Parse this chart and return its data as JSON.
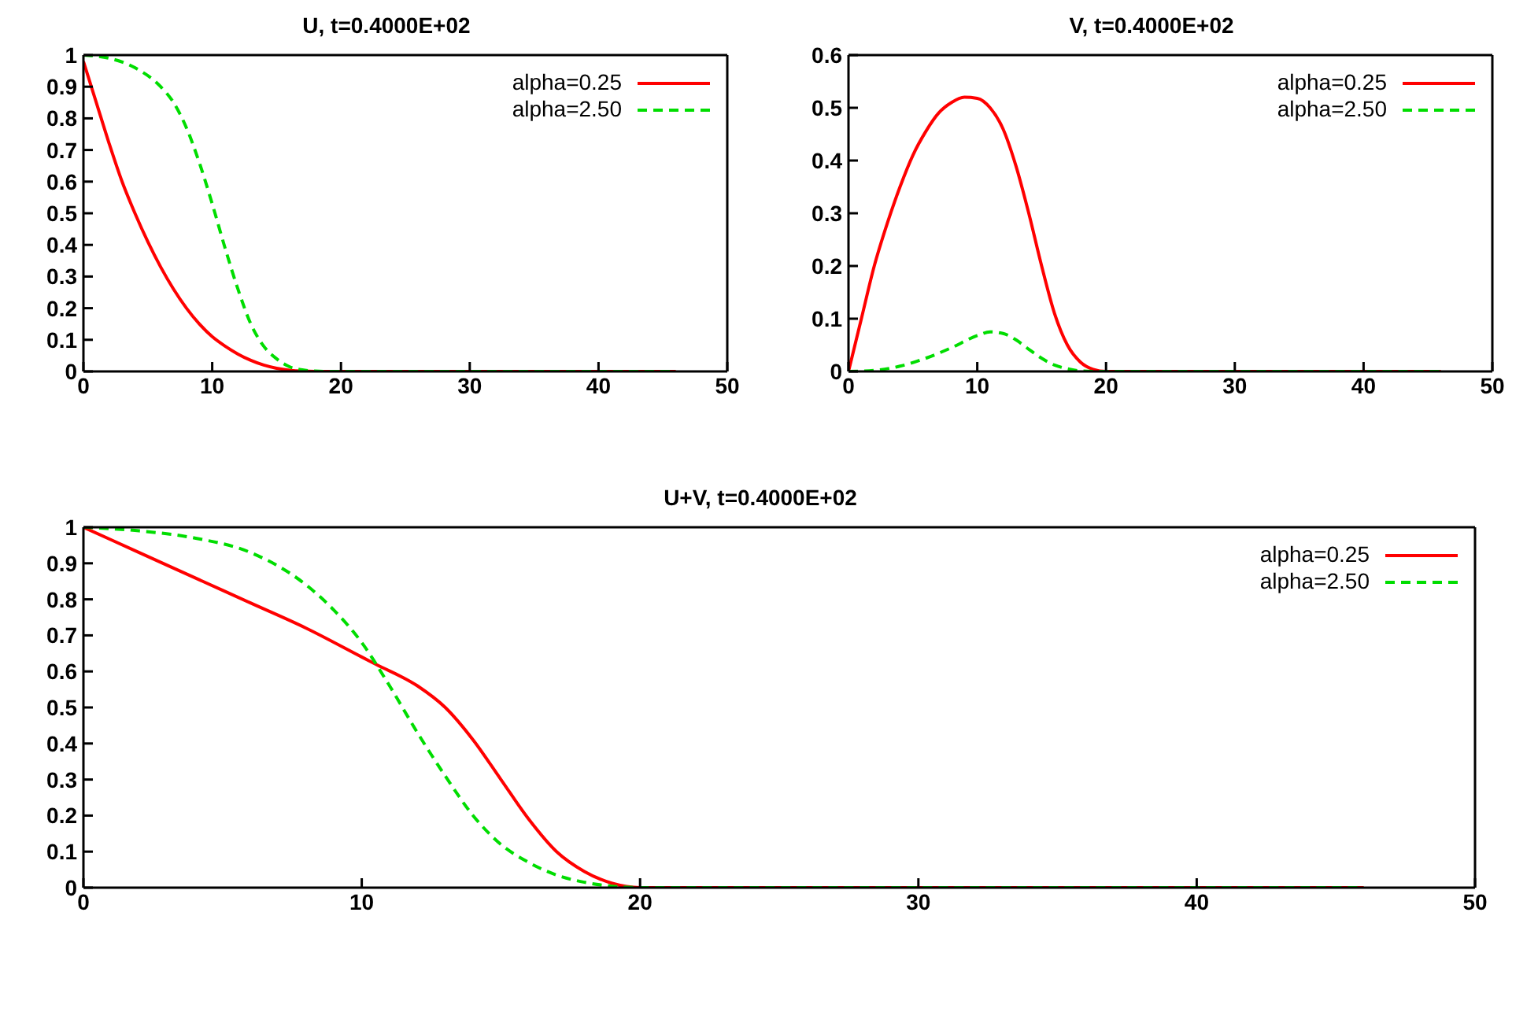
{
  "chart_data": [
    {
      "type": "line",
      "title": "U, t=0.4000E+02",
      "xlim": [
        0,
        50
      ],
      "xticks": [
        0,
        10,
        20,
        30,
        40,
        50
      ],
      "ylim": [
        0,
        1
      ],
      "yticks": [
        0,
        0.1,
        0.2,
        0.3,
        0.4,
        0.5,
        0.6,
        0.7,
        0.8,
        0.9,
        1
      ],
      "grid": false,
      "legend": "top right",
      "marker": "none",
      "series": [
        {
          "name": "alpha=0.25",
          "color": "#ff0000",
          "line_style": "solid",
          "x": [
            0,
            1,
            2,
            3,
            4,
            5,
            6,
            7,
            8,
            9,
            10,
            11,
            12,
            13,
            14,
            15,
            16,
            17,
            18,
            46
          ],
          "values": [
            0.98,
            0.85,
            0.72,
            0.6,
            0.5,
            0.41,
            0.33,
            0.26,
            0.2,
            0.15,
            0.11,
            0.08,
            0.055,
            0.035,
            0.02,
            0.01,
            0.004,
            0.001,
            0,
            0
          ]
        },
        {
          "name": "alpha=2.50",
          "color": "#00dd00",
          "line_style": "dashed",
          "x": [
            0,
            2,
            4,
            6,
            7,
            8,
            9,
            10,
            11,
            12,
            13,
            14,
            15,
            16,
            17,
            18,
            19,
            46
          ],
          "values": [
            1,
            0.99,
            0.96,
            0.9,
            0.85,
            0.77,
            0.66,
            0.53,
            0.39,
            0.26,
            0.15,
            0.08,
            0.04,
            0.015,
            0.005,
            0.001,
            0,
            0
          ]
        }
      ]
    },
    {
      "type": "line",
      "title": "V, t=0.4000E+02",
      "xlim": [
        0,
        50
      ],
      "xticks": [
        0,
        10,
        20,
        30,
        40,
        50
      ],
      "ylim": [
        0,
        0.6
      ],
      "yticks": [
        0,
        0.1,
        0.2,
        0.3,
        0.4,
        0.5,
        0.6
      ],
      "grid": false,
      "legend": "top right",
      "marker": "none",
      "series": [
        {
          "name": "alpha=0.25",
          "color": "#ff0000",
          "line_style": "solid",
          "x": [
            0,
            0.5,
            1,
            2,
            3,
            4,
            5,
            6,
            7,
            8,
            9,
            10,
            11,
            12,
            13,
            14,
            15,
            16,
            17,
            18,
            19,
            20,
            46
          ],
          "values": [
            0,
            0.05,
            0.1,
            0.2,
            0.28,
            0.35,
            0.41,
            0.455,
            0.49,
            0.51,
            0.52,
            0.518,
            0.5,
            0.46,
            0.39,
            0.3,
            0.2,
            0.11,
            0.05,
            0.018,
            0.004,
            0,
            0
          ]
        },
        {
          "name": "alpha=2.50",
          "color": "#00dd00",
          "line_style": "dashed",
          "x": [
            0,
            2,
            4,
            6,
            8,
            10,
            11,
            12,
            13,
            14,
            15,
            16,
            17,
            18,
            19,
            46
          ],
          "values": [
            0,
            0.002,
            0.01,
            0.025,
            0.045,
            0.068,
            0.075,
            0.072,
            0.06,
            0.042,
            0.025,
            0.012,
            0.005,
            0.001,
            0,
            0
          ]
        }
      ]
    },
    {
      "type": "line",
      "title": "U+V, t=0.4000E+02",
      "xlim": [
        0,
        50
      ],
      "xticks": [
        0,
        10,
        20,
        30,
        40,
        50
      ],
      "ylim": [
        0,
        1
      ],
      "yticks": [
        0,
        0.1,
        0.2,
        0.3,
        0.4,
        0.5,
        0.6,
        0.7,
        0.8,
        0.9,
        1
      ],
      "grid": false,
      "legend": "top right",
      "marker": "none",
      "series": [
        {
          "name": "alpha=0.25",
          "color": "#ff0000",
          "line_style": "solid",
          "x": [
            0,
            2,
            4,
            6,
            8,
            10,
            10.5,
            12,
            13,
            14,
            15,
            16,
            17,
            18,
            19,
            20,
            46
          ],
          "values": [
            1,
            0.93,
            0.86,
            0.79,
            0.72,
            0.64,
            0.62,
            0.56,
            0.5,
            0.41,
            0.3,
            0.19,
            0.1,
            0.045,
            0.012,
            0,
            0
          ]
        },
        {
          "name": "alpha=2.50",
          "color": "#00dd00",
          "line_style": "dashed",
          "x": [
            0,
            2,
            4,
            6,
            8,
            9,
            10,
            11,
            12,
            13,
            14,
            15,
            16,
            17,
            18,
            19,
            20,
            46
          ],
          "values": [
            1,
            0.99,
            0.97,
            0.93,
            0.84,
            0.77,
            0.68,
            0.56,
            0.43,
            0.31,
            0.2,
            0.12,
            0.07,
            0.035,
            0.015,
            0.004,
            0,
            0
          ]
        }
      ]
    }
  ]
}
